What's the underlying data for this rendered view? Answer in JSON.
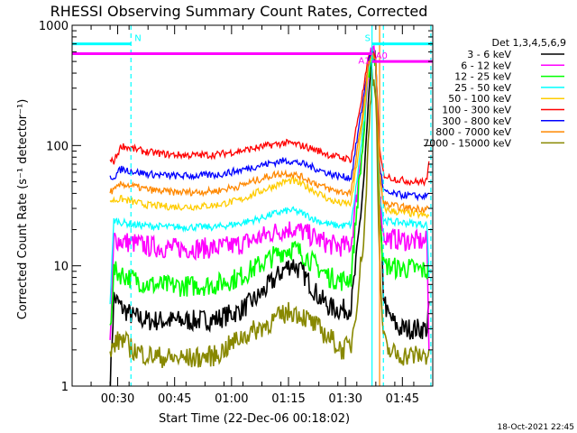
{
  "chart_data": {
    "type": "line",
    "title": "RHESSI Observing Summary Count Rates, Corrected",
    "xlabel": "Start Time (22-Dec-06 00:18:02)",
    "ylabel": "Corrected Count Rate (s⁻¹ detector⁻¹)",
    "x_units": "minutes after 00:18:02",
    "xlim": [
      0,
      95
    ],
    "ylim": [
      1,
      1000
    ],
    "yscale": "log",
    "x_ticks": [
      {
        "value": 12,
        "label": "00:30"
      },
      {
        "value": 27,
        "label": "00:45"
      },
      {
        "value": 42,
        "label": "01:00"
      },
      {
        "value": 57,
        "label": "01:15"
      },
      {
        "value": 72,
        "label": "01:30"
      },
      {
        "value": 87,
        "label": "01:45"
      }
    ],
    "y_ticks": [
      {
        "value": 1,
        "label": "1"
      },
      {
        "value": 10,
        "label": "10"
      },
      {
        "value": 100,
        "label": "100"
      },
      {
        "value": 1000,
        "label": "1000"
      }
    ],
    "legend_title": "Det 1,3,4,5,6,9",
    "legend_position": "right",
    "series": [
      {
        "name": "3 - 6 keV",
        "color": "#000000",
        "x": [
          10,
          11,
          13,
          16,
          20,
          26,
          32,
          38,
          44,
          49,
          53,
          56,
          58,
          61,
          65,
          68,
          71,
          73.5,
          75,
          77,
          78,
          79,
          80,
          81,
          82,
          83,
          86,
          90,
          93.5,
          94
        ],
        "y": [
          1,
          5.5,
          4.5,
          3.8,
          3.5,
          3.5,
          3.5,
          3.6,
          4.2,
          5.5,
          7.5,
          9.5,
          10.5,
          8.5,
          5.5,
          4.5,
          4.3,
          4.5,
          12,
          60,
          200,
          500,
          500,
          30,
          6,
          4,
          3,
          3,
          3,
          5
        ]
      },
      {
        "name": "6 - 12 keV",
        "color": "#ff00ff",
        "x": [
          10,
          11,
          13,
          16,
          20,
          26,
          32,
          38,
          44,
          49,
          53,
          56,
          58,
          61,
          65,
          68,
          71,
          73.5,
          75,
          77,
          78,
          79,
          80,
          81,
          82,
          83,
          86,
          90,
          93.5,
          94
        ],
        "y": [
          2,
          17,
          16,
          15.5,
          14.5,
          14,
          14,
          14,
          15,
          17,
          19,
          20,
          20.5,
          19,
          16.5,
          15,
          14.5,
          15,
          40,
          150,
          400,
          600,
          500,
          40,
          18,
          17,
          16.5,
          16,
          16,
          2
        ]
      },
      {
        "name": "12 - 25 keV",
        "color": "#00ff00",
        "x": [
          10,
          11,
          13,
          16,
          20,
          26,
          32,
          38,
          44,
          49,
          53,
          56,
          58,
          61,
          65,
          68,
          71,
          73.5,
          75,
          77,
          78,
          79,
          80,
          81,
          82,
          83,
          86,
          90,
          93.5,
          94
        ],
        "y": [
          3,
          9,
          8.5,
          7.8,
          7,
          6.8,
          6.8,
          7,
          8,
          10,
          12,
          13.5,
          14,
          12.5,
          9.5,
          8,
          7.5,
          8,
          30,
          140,
          400,
          600,
          500,
          30,
          10,
          10,
          9.5,
          9.5,
          9,
          9
        ]
      },
      {
        "name": "25 - 50 keV",
        "color": "#00ffff",
        "x": [
          10,
          11,
          13,
          16,
          20,
          26,
          32,
          38,
          44,
          49,
          53,
          56,
          58,
          61,
          65,
          68,
          71,
          73.5,
          75,
          77,
          78,
          79,
          80,
          81,
          82,
          83,
          86,
          90,
          93.5,
          94
        ],
        "y": [
          5,
          24,
          23,
          22,
          21.5,
          21,
          21,
          21,
          22.5,
          24.5,
          27,
          28.5,
          29,
          27,
          23.5,
          22,
          21.5,
          22,
          50,
          170,
          420,
          600,
          500,
          40,
          24,
          23.5,
          23,
          22.5,
          22,
          8
        ]
      },
      {
        "name": "50 - 100 keV",
        "color": "#ffcc00",
        "x": [
          10,
          11,
          13,
          16,
          20,
          26,
          32,
          38,
          44,
          49,
          53,
          56,
          58,
          61,
          65,
          68,
          71,
          73.5,
          75,
          77,
          78,
          79,
          80,
          81,
          82,
          83,
          86,
          90,
          93.5,
          94
        ],
        "y": [
          35,
          35,
          36,
          34,
          32,
          31,
          31,
          32,
          35,
          41,
          46,
          50,
          51,
          47,
          40,
          35,
          33,
          33,
          70,
          200,
          450,
          600,
          500,
          60,
          31,
          29,
          28,
          27,
          26,
          26
        ]
      },
      {
        "name": "100 - 300 keV",
        "color": "#ff0000",
        "x": [
          10,
          11,
          13,
          16,
          20,
          26,
          32,
          38,
          44,
          49,
          53,
          56,
          58,
          61,
          65,
          68,
          71,
          73.5,
          75,
          77,
          78,
          79,
          80,
          81,
          82,
          83,
          86,
          90,
          93.5,
          94
        ],
        "y": [
          74,
          74,
          100,
          94,
          88,
          84,
          83,
          84,
          90,
          96,
          102,
          105,
          104,
          99,
          90,
          83,
          79,
          77,
          150,
          330,
          520,
          600,
          520,
          90,
          58,
          55,
          52,
          50,
          50,
          74
        ]
      },
      {
        "name": "300 - 800 keV",
        "color": "#0000ff",
        "x": [
          10,
          11,
          13,
          16,
          20,
          26,
          32,
          38,
          44,
          49,
          53,
          56,
          58,
          61,
          65,
          68,
          71,
          73.5,
          75,
          77,
          78,
          79,
          80,
          81,
          82,
          83,
          86,
          90,
          93.5,
          94
        ],
        "y": [
          55,
          55,
          64,
          61,
          58,
          56,
          56,
          57,
          62,
          68,
          72,
          75,
          74,
          70,
          63,
          58,
          55,
          54,
          110,
          280,
          490,
          600,
          500,
          70,
          42,
          40,
          39,
          38,
          38,
          40
        ]
      },
      {
        "name": "800 - 7000 keV",
        "color": "#ff8800",
        "x": [
          10,
          11,
          13,
          16,
          20,
          26,
          32,
          38,
          44,
          49,
          53,
          56,
          58,
          61,
          65,
          68,
          71,
          73.5,
          75,
          77,
          78,
          79,
          80,
          81,
          82,
          83,
          86,
          90,
          93.5,
          94
        ],
        "y": [
          42,
          42,
          48,
          46,
          43,
          41,
          41,
          42,
          46,
          52,
          57,
          59,
          58,
          54,
          47,
          43,
          41,
          41,
          85,
          240,
          470,
          600,
          500,
          55,
          34,
          32,
          31,
          30,
          30,
          30
        ]
      },
      {
        "name": "7000 - 15000 keV",
        "color": "#888800",
        "x": [
          10,
          11,
          13,
          16,
          20,
          26,
          32,
          38,
          44,
          49,
          53,
          56,
          58,
          61,
          65,
          68,
          71,
          73.5,
          75,
          77,
          78,
          79,
          80,
          81,
          82,
          83,
          86,
          90,
          93.5,
          94
        ],
        "y": [
          1.8,
          2.2,
          2.5,
          2,
          1.8,
          1.7,
          1.7,
          1.8,
          2.5,
          3,
          3.5,
          4,
          4.2,
          3.8,
          3,
          2.5,
          2,
          2.2,
          5,
          20,
          100,
          400,
          300,
          10,
          2.5,
          2,
          1.8,
          1.8,
          1.8,
          2
        ]
      }
    ],
    "state_bars": [
      {
        "label": "N",
        "color": "#00ffff",
        "y": 700,
        "segments": [
          [
            0,
            15.5
          ],
          [
            79,
            95
          ]
        ]
      },
      {
        "label": "A1",
        "color": "#ff00ff",
        "y": 580,
        "segments": [
          [
            0,
            79
          ]
        ]
      },
      {
        "label": "A0",
        "color": "#ff00ff",
        "y": 500,
        "segments": [
          [
            79,
            95
          ]
        ]
      },
      {
        "label": "S",
        "color": "#00ffff",
        "y": null,
        "segments": []
      }
    ],
    "markers": [
      {
        "x": 15.5,
        "color": "#00ffff",
        "style": "dashed"
      },
      {
        "x": 79,
        "color": "#00ffff",
        "style": "solid"
      },
      {
        "x": 81,
        "color": "#ff8800",
        "style": "solid"
      },
      {
        "x": 82,
        "color": "#00ffff",
        "style": "dashed"
      },
      {
        "x": 94.5,
        "color": "#00ffff",
        "style": "dashed"
      }
    ],
    "timestamp": "18-Oct-2021 22:45"
  }
}
